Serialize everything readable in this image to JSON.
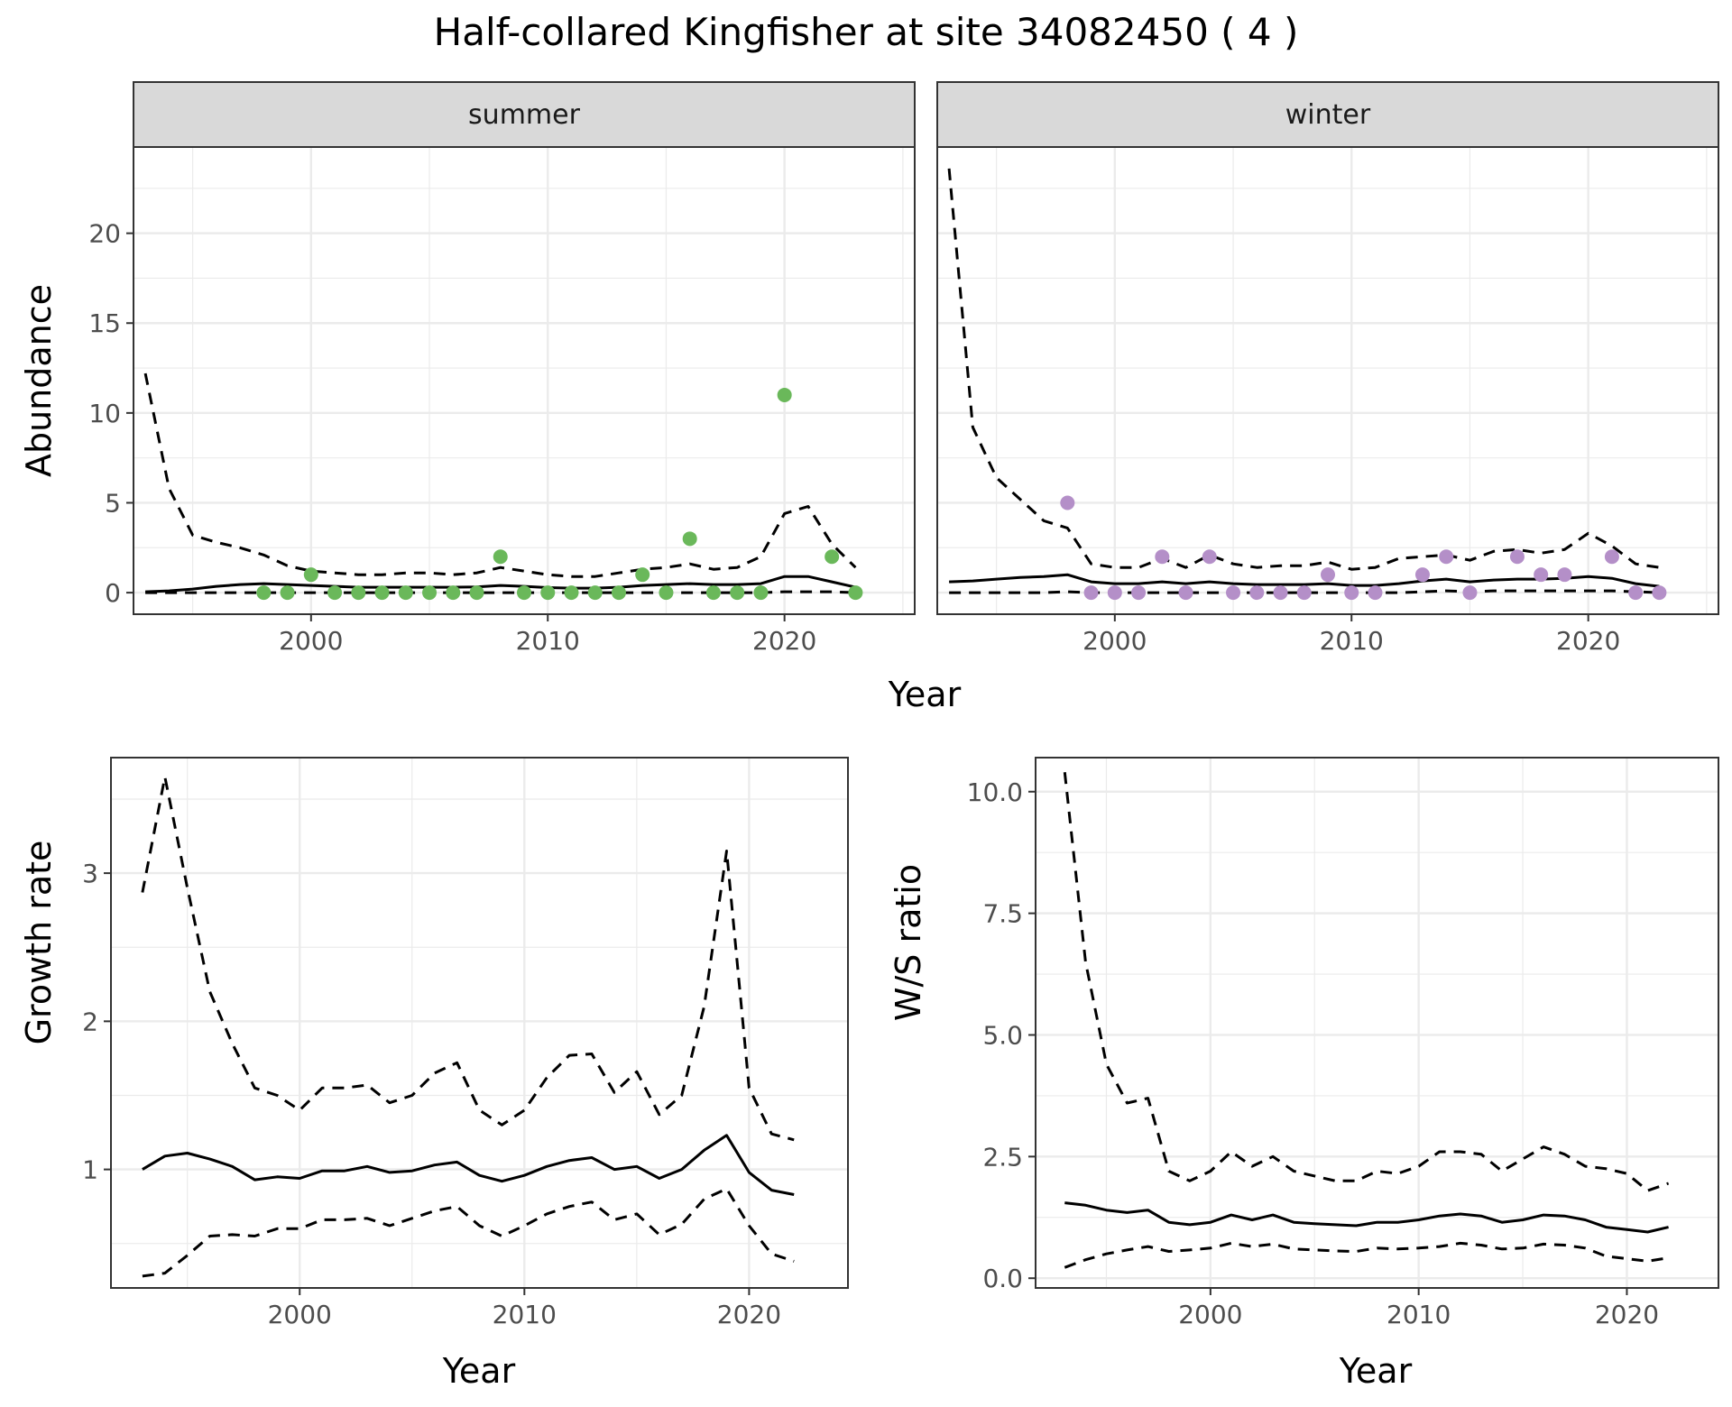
{
  "figure": {
    "title": "Half-collared Kingfisher at site 34082450 ( 4 )",
    "x_axis_label": "Year",
    "colors": {
      "summer_points": "#6ab85a",
      "winter_points": "#b48fc8",
      "lines": "#000000",
      "grid_major": "#ebebeb",
      "strip_background": "#d9d9d9"
    }
  },
  "chart_data": [
    {
      "id": "abundance-summer",
      "type": "line",
      "facet": "summer",
      "ylabel": "Abundance",
      "xlim": [
        1992.5,
        2025.5
      ],
      "ylim": [
        -1.2,
        24.8
      ],
      "xticks": [
        2000,
        2010,
        2020
      ],
      "yticks": [
        0,
        5,
        10,
        15,
        20
      ],
      "grid": true,
      "series": [
        {
          "role": "estimate",
          "style": "solid",
          "x": [
            1993,
            1994,
            1995,
            1996,
            1997,
            1998,
            1999,
            2000,
            2001,
            2002,
            2003,
            2004,
            2005,
            2006,
            2007,
            2008,
            2009,
            2010,
            2011,
            2012,
            2013,
            2014,
            2015,
            2016,
            2017,
            2018,
            2019,
            2020,
            2021,
            2022,
            2023
          ],
          "y": [
            0.05,
            0.1,
            0.2,
            0.35,
            0.45,
            0.5,
            0.45,
            0.4,
            0.35,
            0.3,
            0.3,
            0.3,
            0.3,
            0.3,
            0.32,
            0.4,
            0.35,
            0.28,
            0.25,
            0.25,
            0.3,
            0.4,
            0.45,
            0.5,
            0.45,
            0.45,
            0.5,
            0.9,
            0.9,
            0.6,
            0.3
          ]
        },
        {
          "role": "upper",
          "style": "dashed",
          "x": [
            1993,
            1994,
            1995,
            1996,
            1997,
            1998,
            1999,
            2000,
            2001,
            2002,
            2003,
            2004,
            2005,
            2006,
            2007,
            2008,
            2009,
            2010,
            2011,
            2012,
            2013,
            2014,
            2015,
            2016,
            2017,
            2018,
            2019,
            2020,
            2021,
            2022,
            2023
          ],
          "y": [
            12.2,
            5.8,
            3.2,
            2.8,
            2.5,
            2.1,
            1.5,
            1.2,
            1.1,
            1.0,
            1.0,
            1.1,
            1.1,
            1.0,
            1.1,
            1.4,
            1.2,
            1.0,
            0.9,
            0.9,
            1.1,
            1.3,
            1.4,
            1.6,
            1.3,
            1.4,
            2.0,
            4.4,
            4.8,
            2.7,
            1.4
          ]
        },
        {
          "role": "lower",
          "style": "dashed",
          "x": [
            1993,
            1994,
            1995,
            1996,
            1997,
            1998,
            1999,
            2000,
            2001,
            2002,
            2003,
            2004,
            2005,
            2006,
            2007,
            2008,
            2009,
            2010,
            2011,
            2012,
            2013,
            2014,
            2015,
            2016,
            2017,
            2018,
            2019,
            2020,
            2021,
            2022,
            2023
          ],
          "y": [
            0.0,
            0.0,
            0.0,
            0.0,
            0.0,
            0.0,
            0.0,
            0.0,
            0.0,
            0.0,
            0.0,
            0.0,
            0.0,
            0.0,
            0.0,
            0.0,
            0.0,
            0.0,
            0.0,
            0.0,
            0.0,
            0.0,
            0.0,
            0.0,
            0.0,
            0.0,
            0.0,
            0.05,
            0.05,
            0.05,
            0.0
          ]
        },
        {
          "role": "observed",
          "style": "points",
          "x": [
            1998,
            1999,
            2000,
            2001,
            2002,
            2003,
            2004,
            2005,
            2006,
            2007,
            2008,
            2009,
            2010,
            2011,
            2012,
            2013,
            2014,
            2015,
            2016,
            2017,
            2018,
            2019,
            2020,
            2022,
            2023
          ],
          "y": [
            0,
            0,
            1,
            0,
            0,
            0,
            0,
            0,
            0,
            0,
            2,
            0,
            0,
            0,
            0,
            0,
            1,
            0,
            3,
            0,
            0,
            0,
            11,
            2,
            0
          ]
        }
      ]
    },
    {
      "id": "abundance-winter",
      "type": "line",
      "facet": "winter",
      "xlim": [
        1992.5,
        2025.5
      ],
      "ylim": [
        -1.2,
        24.8
      ],
      "xticks": [
        2000,
        2010,
        2020
      ],
      "yticks": [
        0,
        5,
        10,
        15,
        20
      ],
      "grid": true,
      "series": [
        {
          "role": "estimate",
          "style": "solid",
          "x": [
            1993,
            1994,
            1995,
            1996,
            1997,
            1998,
            1999,
            2000,
            2001,
            2002,
            2003,
            2004,
            2005,
            2006,
            2007,
            2008,
            2009,
            2010,
            2011,
            2012,
            2013,
            2014,
            2015,
            2016,
            2017,
            2018,
            2019,
            2020,
            2021,
            2022,
            2023
          ],
          "y": [
            0.6,
            0.65,
            0.75,
            0.85,
            0.9,
            1.0,
            0.6,
            0.5,
            0.5,
            0.6,
            0.5,
            0.6,
            0.5,
            0.45,
            0.45,
            0.45,
            0.5,
            0.4,
            0.4,
            0.5,
            0.65,
            0.75,
            0.6,
            0.7,
            0.75,
            0.75,
            0.8,
            0.9,
            0.8,
            0.5,
            0.35
          ]
        },
        {
          "role": "upper",
          "style": "dashed",
          "x": [
            1993,
            1994,
            1995,
            1996,
            1997,
            1998,
            1999,
            2000,
            2001,
            2002,
            2003,
            2004,
            2005,
            2006,
            2007,
            2008,
            2009,
            2010,
            2011,
            2012,
            2013,
            2014,
            2015,
            2016,
            2017,
            2018,
            2019,
            2020,
            2021,
            2022,
            2023
          ],
          "y": [
            23.6,
            9.2,
            6.4,
            5.2,
            4.0,
            3.6,
            1.6,
            1.4,
            1.4,
            1.9,
            1.4,
            2.1,
            1.6,
            1.4,
            1.5,
            1.5,
            1.7,
            1.3,
            1.4,
            1.9,
            2.0,
            2.1,
            1.8,
            2.3,
            2.4,
            2.2,
            2.4,
            3.3,
            2.6,
            1.6,
            1.4
          ]
        },
        {
          "role": "lower",
          "style": "dashed",
          "x": [
            1993,
            1994,
            1995,
            1996,
            1997,
            1998,
            1999,
            2000,
            2001,
            2002,
            2003,
            2004,
            2005,
            2006,
            2007,
            2008,
            2009,
            2010,
            2011,
            2012,
            2013,
            2014,
            2015,
            2016,
            2017,
            2018,
            2019,
            2020,
            2021,
            2022,
            2023
          ],
          "y": [
            0.0,
            0.0,
            0.0,
            0.0,
            0.0,
            0.05,
            0.0,
            0.0,
            0.0,
            0.0,
            0.0,
            0.0,
            0.0,
            0.0,
            0.0,
            0.0,
            0.0,
            0.0,
            0.0,
            0.0,
            0.05,
            0.1,
            0.05,
            0.1,
            0.1,
            0.1,
            0.1,
            0.1,
            0.1,
            0.05,
            0.0
          ]
        },
        {
          "role": "observed",
          "style": "points",
          "x": [
            1998,
            1999,
            2000,
            2001,
            2002,
            2003,
            2004,
            2005,
            2006,
            2007,
            2008,
            2009,
            2010,
            2011,
            2013,
            2014,
            2015,
            2017,
            2018,
            2019,
            2021,
            2022,
            2023
          ],
          "y": [
            5,
            0,
            0,
            0,
            2,
            0,
            2,
            0,
            0,
            0,
            0,
            1,
            0,
            0,
            1,
            2,
            0,
            2,
            1,
            1,
            2,
            0,
            0
          ]
        }
      ]
    },
    {
      "id": "growth-rate",
      "type": "line",
      "ylabel": "Growth rate",
      "xlabel": "Year",
      "xlim": [
        1991.6,
        2024.4
      ],
      "ylim": [
        0.2,
        3.78
      ],
      "xticks": [
        2000,
        2010,
        2020
      ],
      "yticks": [
        1,
        2,
        3
      ],
      "grid": true,
      "series": [
        {
          "role": "estimate",
          "style": "solid",
          "x": [
            1993,
            1994,
            1995,
            1996,
            1997,
            1998,
            1999,
            2000,
            2001,
            2002,
            2003,
            2004,
            2005,
            2006,
            2007,
            2008,
            2009,
            2010,
            2011,
            2012,
            2013,
            2014,
            2015,
            2016,
            2017,
            2018,
            2019,
            2020,
            2021,
            2022
          ],
          "y": [
            1.0,
            1.09,
            1.11,
            1.07,
            1.02,
            0.93,
            0.95,
            0.94,
            0.99,
            0.99,
            1.02,
            0.98,
            0.99,
            1.03,
            1.05,
            0.96,
            0.92,
            0.96,
            1.02,
            1.06,
            1.08,
            1.0,
            1.02,
            0.94,
            1.0,
            1.13,
            1.23,
            0.98,
            0.86,
            0.83
          ]
        },
        {
          "role": "upper",
          "style": "dashed",
          "x": [
            1993,
            1994,
            1995,
            1996,
            1997,
            1998,
            1999,
            2000,
            2001,
            2002,
            2003,
            2004,
            2005,
            2006,
            2007,
            2008,
            2009,
            2010,
            2011,
            2012,
            2013,
            2014,
            2015,
            2016,
            2017,
            2018,
            2019,
            2020,
            2021,
            2022
          ],
          "y": [
            2.87,
            3.65,
            2.9,
            2.2,
            1.85,
            1.55,
            1.5,
            1.4,
            1.55,
            1.55,
            1.57,
            1.45,
            1.5,
            1.65,
            1.72,
            1.4,
            1.3,
            1.4,
            1.62,
            1.77,
            1.78,
            1.52,
            1.66,
            1.37,
            1.5,
            2.1,
            3.15,
            1.55,
            1.24,
            1.2
          ]
        },
        {
          "role": "lower",
          "style": "dashed",
          "x": [
            1993,
            1994,
            1995,
            1996,
            1997,
            1998,
            1999,
            2000,
            2001,
            2002,
            2003,
            2004,
            2005,
            2006,
            2007,
            2008,
            2009,
            2010,
            2011,
            2012,
            2013,
            2014,
            2015,
            2016,
            2017,
            2018,
            2019,
            2020,
            2021,
            2022
          ],
          "y": [
            0.28,
            0.3,
            0.42,
            0.55,
            0.56,
            0.55,
            0.6,
            0.6,
            0.66,
            0.66,
            0.67,
            0.62,
            0.67,
            0.72,
            0.75,
            0.62,
            0.55,
            0.62,
            0.7,
            0.75,
            0.78,
            0.66,
            0.7,
            0.56,
            0.63,
            0.8,
            0.87,
            0.62,
            0.43,
            0.38
          ]
        }
      ]
    },
    {
      "id": "ws-ratio",
      "type": "line",
      "ylabel": "W/S ratio",
      "xlabel": "Year",
      "xlim": [
        1991.6,
        2024.4
      ],
      "ylim": [
        -0.2,
        10.7
      ],
      "xticks": [
        2000,
        2010,
        2020
      ],
      "yticks": [
        0.0,
        2.5,
        5.0,
        7.5,
        10.0
      ],
      "ytick_labels": [
        "0.0",
        "2.5",
        "5.0",
        "7.5",
        "10.0"
      ],
      "grid": true,
      "series": [
        {
          "role": "estimate",
          "style": "solid",
          "x": [
            1993,
            1994,
            1995,
            1996,
            1997,
            1998,
            1999,
            2000,
            2001,
            2002,
            2003,
            2004,
            2005,
            2006,
            2007,
            2008,
            2009,
            2010,
            2011,
            2012,
            2013,
            2014,
            2015,
            2016,
            2017,
            2018,
            2019,
            2020,
            2021,
            2022
          ],
          "y": [
            1.55,
            1.5,
            1.4,
            1.35,
            1.4,
            1.15,
            1.1,
            1.15,
            1.3,
            1.2,
            1.3,
            1.15,
            1.12,
            1.1,
            1.08,
            1.15,
            1.15,
            1.2,
            1.28,
            1.32,
            1.28,
            1.15,
            1.2,
            1.3,
            1.28,
            1.2,
            1.05,
            1.0,
            0.95,
            1.05
          ]
        },
        {
          "role": "upper",
          "style": "dashed",
          "x": [
            1993,
            1994,
            1995,
            1996,
            1997,
            1998,
            1999,
            2000,
            2001,
            2002,
            2003,
            2004,
            2005,
            2006,
            2007,
            2008,
            2009,
            2010,
            2011,
            2012,
            2013,
            2014,
            2015,
            2016,
            2017,
            2018,
            2019,
            2020,
            2021,
            2022
          ],
          "y": [
            10.4,
            6.5,
            4.4,
            3.6,
            3.7,
            2.2,
            2.0,
            2.2,
            2.6,
            2.3,
            2.5,
            2.2,
            2.1,
            2.0,
            2.0,
            2.2,
            2.15,
            2.3,
            2.6,
            2.6,
            2.55,
            2.2,
            2.45,
            2.7,
            2.55,
            2.3,
            2.25,
            2.15,
            1.8,
            1.95
          ]
        },
        {
          "role": "lower",
          "style": "dashed",
          "x": [
            1993,
            1994,
            1995,
            1996,
            1997,
            1998,
            1999,
            2000,
            2001,
            2002,
            2003,
            2004,
            2005,
            2006,
            2007,
            2008,
            2009,
            2010,
            2011,
            2012,
            2013,
            2014,
            2015,
            2016,
            2017,
            2018,
            2019,
            2020,
            2021,
            2022
          ],
          "y": [
            0.22,
            0.38,
            0.5,
            0.58,
            0.65,
            0.55,
            0.58,
            0.62,
            0.72,
            0.65,
            0.7,
            0.6,
            0.58,
            0.56,
            0.55,
            0.62,
            0.6,
            0.62,
            0.65,
            0.72,
            0.68,
            0.6,
            0.62,
            0.7,
            0.68,
            0.62,
            0.45,
            0.4,
            0.35,
            0.42
          ]
        }
      ]
    }
  ]
}
